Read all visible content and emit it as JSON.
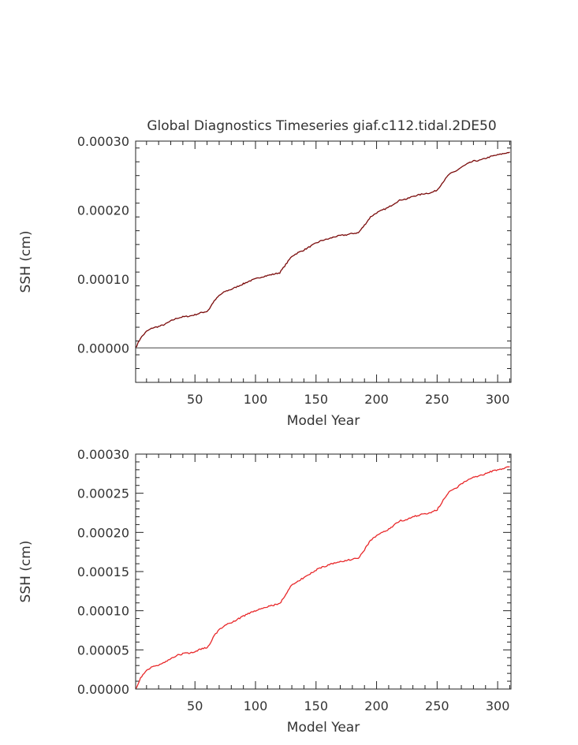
{
  "chart_data": [
    {
      "type": "line",
      "title": "Global Diagnostics Timeseries giaf.c112.tidal.2DE50",
      "xlabel": "Model Year",
      "ylabel": "SSH (cm)",
      "xlim": [
        1,
        311
      ],
      "ylim": [
        -5e-05,
        0.0003
      ],
      "xticks": [
        50,
        100,
        150,
        200,
        250,
        300
      ],
      "yticks": [
        0.0,
        0.0001,
        0.0002,
        0.0003
      ],
      "ytick_labels": [
        "0.00000",
        "0.00010",
        "0.00020",
        "0.00030"
      ],
      "zero_line": true,
      "line_color": "#7a0a0a",
      "x": [
        1,
        5,
        10,
        15,
        20,
        25,
        30,
        35,
        40,
        45,
        50,
        55,
        60,
        62,
        65,
        70,
        75,
        80,
        85,
        90,
        95,
        100,
        105,
        110,
        115,
        120,
        125,
        130,
        135,
        140,
        145,
        150,
        155,
        160,
        165,
        170,
        175,
        180,
        185,
        190,
        195,
        200,
        205,
        210,
        215,
        220,
        225,
        230,
        235,
        240,
        245,
        250,
        255,
        260,
        265,
        270,
        275,
        280,
        285,
        290,
        295,
        300,
        305,
        310
      ],
      "y": [
        0.0,
        1.4e-05,
        2.4e-05,
        2.9e-05,
        3.1e-05,
        3.4e-05,
        3.9e-05,
        4.3e-05,
        4.5e-05,
        4.6e-05,
        4.8e-05,
        5.1e-05,
        5.3e-05,
        5.7e-05,
        6.6e-05,
        7.6e-05,
        8.2e-05,
        8.5e-05,
        8.9e-05,
        9.3e-05,
        9.7e-05,
        0.0001,
        0.000103,
        0.000105,
        0.000107,
        0.000109,
        0.000121,
        0.000133,
        0.000138,
        0.000142,
        0.000147,
        0.000152,
        0.000156,
        0.000158,
        0.000161,
        0.000163,
        0.000164,
        0.000166,
        0.000167,
        0.000178,
        0.00019,
        0.000196,
        0.0002,
        0.000204,
        0.00021,
        0.000215,
        0.000216,
        0.00022,
        0.000222,
        0.000224,
        0.000225,
        0.000229,
        0.000241,
        0.000252,
        0.000256,
        0.000262,
        0.000267,
        0.000271,
        0.000272,
        0.000275,
        0.000278,
        0.00028,
        0.000282,
        0.000284
      ]
    },
    {
      "type": "line",
      "title": "",
      "xlabel": "Model Year",
      "ylabel": "SSH (cm)",
      "xlim": [
        1,
        311
      ],
      "ylim": [
        0.0,
        0.0003
      ],
      "xticks": [
        50,
        100,
        150,
        200,
        250,
        300
      ],
      "yticks": [
        0.0,
        5e-05,
        0.0001,
        0.00015,
        0.0002,
        0.00025,
        0.0003
      ],
      "ytick_labels": [
        "0.00000",
        "0.00005",
        "0.00010",
        "0.00015",
        "0.00020",
        "0.00025",
        "0.00030"
      ],
      "zero_line": false,
      "line_color": "#e8282a",
      "x": [
        1,
        5,
        10,
        15,
        20,
        25,
        30,
        35,
        40,
        45,
        50,
        55,
        60,
        62,
        65,
        70,
        75,
        80,
        85,
        90,
        95,
        100,
        105,
        110,
        115,
        120,
        125,
        130,
        135,
        140,
        145,
        150,
        155,
        160,
        165,
        170,
        175,
        180,
        185,
        190,
        195,
        200,
        205,
        210,
        215,
        220,
        225,
        230,
        235,
        240,
        245,
        250,
        255,
        260,
        265,
        270,
        275,
        280,
        285,
        290,
        295,
        300,
        305,
        310
      ],
      "y": [
        0.0,
        1.4e-05,
        2.4e-05,
        2.9e-05,
        3.1e-05,
        3.4e-05,
        3.9e-05,
        4.3e-05,
        4.5e-05,
        4.6e-05,
        4.8e-05,
        5.1e-05,
        5.3e-05,
        5.7e-05,
        6.6e-05,
        7.6e-05,
        8.2e-05,
        8.5e-05,
        8.9e-05,
        9.3e-05,
        9.7e-05,
        0.0001,
        0.000103,
        0.000105,
        0.000107,
        0.000109,
        0.000121,
        0.000133,
        0.000138,
        0.000142,
        0.000147,
        0.000152,
        0.000156,
        0.000158,
        0.000161,
        0.000163,
        0.000164,
        0.000166,
        0.000167,
        0.000178,
        0.00019,
        0.000196,
        0.0002,
        0.000204,
        0.00021,
        0.000215,
        0.000216,
        0.00022,
        0.000222,
        0.000224,
        0.000225,
        0.000229,
        0.000241,
        0.000252,
        0.000256,
        0.000262,
        0.000267,
        0.000271,
        0.000272,
        0.000275,
        0.000278,
        0.00028,
        0.000282,
        0.000284
      ]
    }
  ]
}
